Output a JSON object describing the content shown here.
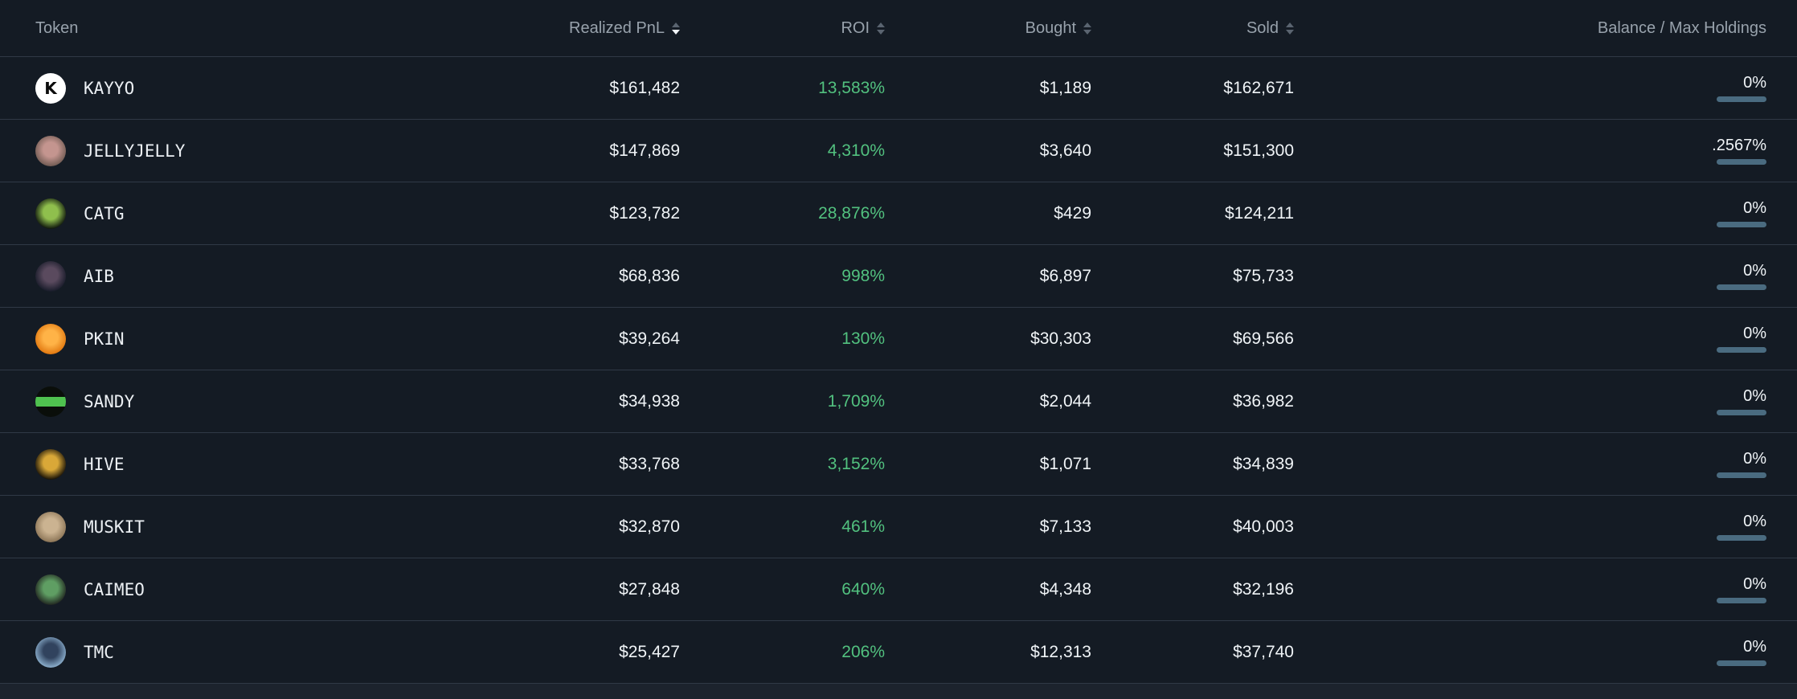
{
  "theme": {
    "background": "#141b24",
    "roi_green": "#52c17f",
    "holdings_bar": "#4a6b80",
    "divider": "#303946",
    "header_text": "#98a2ac"
  },
  "table": {
    "columns": [
      {
        "key": "token",
        "label": "Token",
        "sortable": false,
        "sort": "none"
      },
      {
        "key": "realized_pnl",
        "label": "Realized PnL",
        "sortable": true,
        "sort": "desc"
      },
      {
        "key": "roi",
        "label": "ROI",
        "sortable": true,
        "sort": "none"
      },
      {
        "key": "bought",
        "label": "Bought",
        "sortable": true,
        "sort": "none"
      },
      {
        "key": "sold",
        "label": "Sold",
        "sortable": true,
        "sort": "none"
      },
      {
        "key": "balance",
        "label": "Balance / Max Holdings",
        "sortable": false,
        "sort": "none"
      }
    ],
    "rows": [
      {
        "token": "KAYYO",
        "realized_pnl": "$161,482",
        "roi": "13,583%",
        "bought": "$1,189",
        "sold": "$162,671",
        "balance": "0%",
        "icon": {
          "name": "kayyo-token-icon",
          "shape": "solid",
          "c1": "#ffffff",
          "c2": "#ffffff",
          "glyph": "K",
          "glyph_color": "#0c0c0c"
        }
      },
      {
        "token": "JELLYJELLY",
        "realized_pnl": "$147,869",
        "roi": "4,310%",
        "bought": "$3,640",
        "sold": "$151,300",
        "balance": ".2567%",
        "icon": {
          "name": "jellyjelly-token-icon",
          "shape": "radial",
          "c1": "#c4958f",
          "c2": "#6f5a52",
          "glyph": "",
          "glyph_color": "#000000"
        }
      },
      {
        "token": "CATG",
        "realized_pnl": "$123,782",
        "roi": "28,876%",
        "bought": "$429",
        "sold": "$124,211",
        "balance": "0%",
        "icon": {
          "name": "catg-token-icon",
          "shape": "radial",
          "c1": "#8fbf4d",
          "c2": "#0b110b",
          "glyph": "",
          "glyph_color": "#000000"
        }
      },
      {
        "token": "AIB",
        "realized_pnl": "$68,836",
        "roi": "998%",
        "bought": "$6,897",
        "sold": "$75,733",
        "balance": "0%",
        "icon": {
          "name": "aib-token-icon",
          "shape": "radial",
          "c1": "#5a4a5e",
          "c2": "#161a28",
          "glyph": "",
          "glyph_color": "#000000"
        }
      },
      {
        "token": "PKIN",
        "realized_pnl": "$39,264",
        "roi": "130%",
        "bought": "$30,303",
        "sold": "$69,566",
        "balance": "0%",
        "icon": {
          "name": "pkin-token-icon",
          "shape": "radial",
          "c1": "#ffb347",
          "c2": "#e0760e",
          "glyph": "",
          "glyph_color": "#000000"
        }
      },
      {
        "token": "SANDY",
        "realized_pnl": "$34,938",
        "roi": "1,709%",
        "bought": "$2,044",
        "sold": "$36,982",
        "balance": "0%",
        "icon": {
          "name": "sandy-token-icon",
          "shape": "band",
          "c1": "#4fc24f",
          "c2": "#0a0e0a",
          "glyph": "",
          "glyph_color": "#000000"
        }
      },
      {
        "token": "HIVE",
        "realized_pnl": "$33,768",
        "roi": "3,152%",
        "bought": "$1,071",
        "sold": "$34,839",
        "balance": "0%",
        "icon": {
          "name": "hive-token-icon",
          "shape": "radial",
          "c1": "#d9a838",
          "c2": "#120d05",
          "glyph": "",
          "glyph_color": "#000000"
        }
      },
      {
        "token": "MUSKIT",
        "realized_pnl": "$32,870",
        "roi": "461%",
        "bought": "$7,133",
        "sold": "$40,003",
        "balance": "0%",
        "icon": {
          "name": "muskit-token-icon",
          "shape": "radial",
          "c1": "#cbb391",
          "c2": "#8a7355",
          "glyph": "",
          "glyph_color": "#000000"
        }
      },
      {
        "token": "CAIMEO",
        "realized_pnl": "$27,848",
        "roi": "640%",
        "bought": "$4,348",
        "sold": "$32,196",
        "balance": "0%",
        "icon": {
          "name": "caimeo-token-icon",
          "shape": "radial",
          "c1": "#5f9e63",
          "c2": "#20241f",
          "glyph": "",
          "glyph_color": "#000000"
        }
      },
      {
        "token": "TMC",
        "realized_pnl": "$25,427",
        "roi": "206%",
        "bought": "$12,313",
        "sold": "$37,740",
        "balance": "0%",
        "icon": {
          "name": "tmc-token-icon",
          "shape": "radial",
          "c1": "#31435e",
          "c2": "#8fb3d1",
          "glyph": "",
          "glyph_color": "#000000"
        }
      }
    ]
  }
}
